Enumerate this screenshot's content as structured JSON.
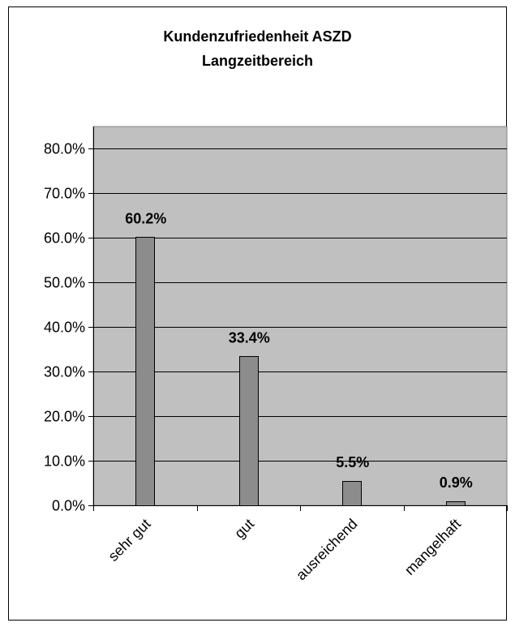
{
  "chart_data": {
    "type": "bar",
    "title": "Kundenzufriedenheit ASZD",
    "subtitle": "Langzeitbereich",
    "categories": [
      "sehr gut",
      "gut",
      "ausreichend",
      "mangelhaft"
    ],
    "values": [
      60.2,
      33.4,
      5.5,
      0.9
    ],
    "data_labels": [
      "60.2%",
      "33.4%",
      "5.5%",
      "0.9%"
    ],
    "y_ticks": [
      "0.0%",
      "10.0%",
      "20.0%",
      "30.0%",
      "40.0%",
      "50.0%",
      "60.0%",
      "70.0%",
      "80.0%"
    ],
    "ylim": [
      0,
      85
    ],
    "xlabel": "",
    "ylabel": "",
    "grid": true,
    "legend": "none",
    "colors": {
      "plot_background": "#c0c0c0",
      "bar_fill": "#8c8c8c",
      "bar_stroke": "#000000",
      "gridline": "#000000"
    }
  }
}
